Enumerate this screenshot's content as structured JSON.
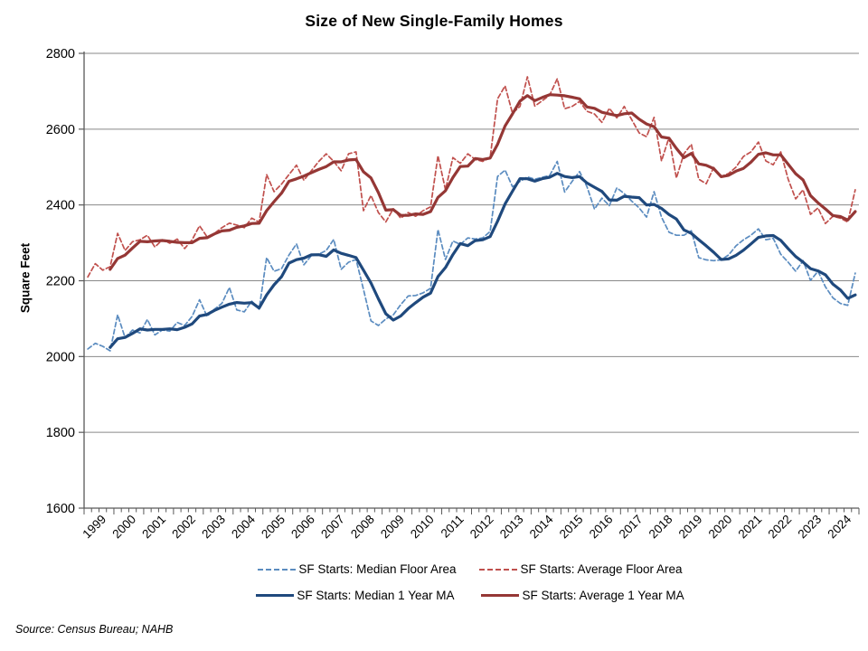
{
  "chart": {
    "title": "Size of New Single-Family Homes",
    "ylabel": "Square Feet",
    "source": "Source: Census Bureau; NAHB"
  },
  "chart_data": {
    "type": "line",
    "title": "Size of New Single-Family Homes",
    "xlabel": "",
    "ylabel": "Square Feet",
    "ylim": [
      1600,
      2800
    ],
    "yticks": [
      1600,
      1800,
      2000,
      2200,
      2400,
      2600,
      2800
    ],
    "grid": true,
    "legend_position": "bottom",
    "frequency": "quarterly",
    "years": [
      1999,
      2000,
      2001,
      2002,
      2003,
      2004,
      2005,
      2006,
      2007,
      2008,
      2009,
      2010,
      2011,
      2012,
      2013,
      2014,
      2015,
      2016,
      2017,
      2018,
      2019,
      2020,
      2021,
      2022,
      2023,
      2024
    ],
    "series": [
      {
        "name": "SF Starts: Median Floor Area",
        "style": "dashed",
        "color": "#5B8CC0",
        "values": [
          2020,
          2035,
          2027,
          2015,
          2110,
          2050,
          2070,
          2062,
          2098,
          2057,
          2070,
          2067,
          2090,
          2082,
          2106,
          2150,
          2106,
          2125,
          2140,
          2182,
          2123,
          2118,
          2146,
          2125,
          2261,
          2225,
          2232,
          2268,
          2297,
          2242,
          2266,
          2270,
          2280,
          2309,
          2230,
          2249,
          2256,
          2177,
          2094,
          2082,
          2099,
          2110,
          2137,
          2160,
          2161,
          2168,
          2180,
          2335,
          2256,
          2305,
          2296,
          2313,
          2310,
          2313,
          2330,
          2475,
          2492,
          2448,
          2462,
          2474,
          2468,
          2473,
          2478,
          2515,
          2434,
          2462,
          2488,
          2448,
          2389,
          2418,
          2398,
          2445,
          2430,
          2410,
          2392,
          2368,
          2435,
          2368,
          2328,
          2320,
          2320,
          2332,
          2261,
          2255,
          2253,
          2255,
          2268,
          2292,
          2308,
          2320,
          2337,
          2308,
          2312,
          2270,
          2249,
          2225,
          2253,
          2201,
          2225,
          2184,
          2155,
          2140,
          2135,
          2220
        ]
      },
      {
        "name": "SF Starts: Average Floor Area",
        "style": "dashed",
        "color": "#C0504D",
        "values": [
          2210,
          2245,
          2228,
          2237,
          2325,
          2280,
          2303,
          2308,
          2320,
          2289,
          2308,
          2299,
          2310,
          2285,
          2308,
          2345,
          2316,
          2325,
          2340,
          2352,
          2347,
          2340,
          2365,
          2355,
          2480,
          2435,
          2455,
          2480,
          2505,
          2465,
          2490,
          2515,
          2535,
          2515,
          2490,
          2535,
          2540,
          2385,
          2425,
          2380,
          2355,
          2390,
          2365,
          2380,
          2370,
          2385,
          2395,
          2530,
          2440,
          2525,
          2510,
          2535,
          2520,
          2515,
          2525,
          2680,
          2714,
          2642,
          2660,
          2738,
          2661,
          2675,
          2690,
          2733,
          2654,
          2660,
          2673,
          2647,
          2640,
          2618,
          2655,
          2630,
          2660,
          2625,
          2590,
          2580,
          2631,
          2516,
          2578,
          2471,
          2535,
          2560,
          2468,
          2456,
          2499,
          2475,
          2483,
          2500,
          2528,
          2540,
          2566,
          2516,
          2506,
          2540,
          2468,
          2416,
          2440,
          2375,
          2392,
          2351,
          2370,
          2365,
          2355,
          2440
        ]
      },
      {
        "name": "SF Starts: Median 1 Year MA",
        "style": "solid",
        "color": "#1F497D",
        "derived": "trailing-4-quarter-mean",
        "source_series": 0
      },
      {
        "name": "SF Starts: Average 1 Year MA",
        "style": "solid",
        "color": "#953735",
        "derived": "trailing-4-quarter-mean",
        "source_series": 1
      }
    ]
  }
}
